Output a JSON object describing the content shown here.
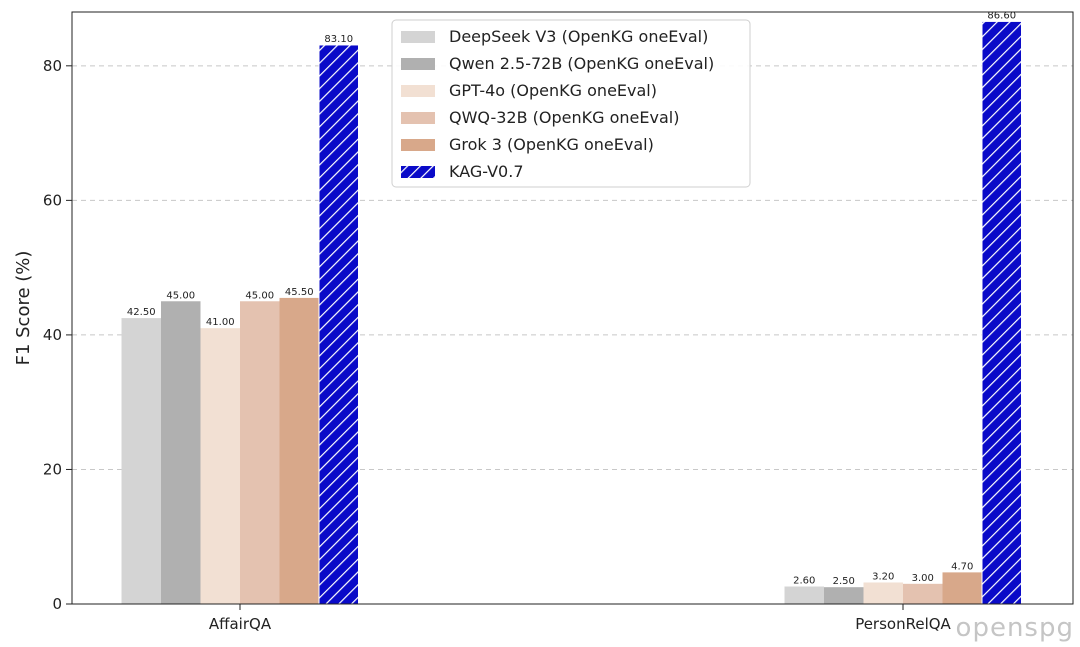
{
  "chart_data": {
    "type": "bar",
    "title": "",
    "xlabel": "",
    "ylabel": "F1 Score (%)",
    "ylim": [
      0,
      88
    ],
    "yticks": [
      0,
      20,
      40,
      60,
      80
    ],
    "grid": "y-dashed",
    "legend_position": "top-center",
    "categories": [
      "AffairQA",
      "PersonRelQA"
    ],
    "series": [
      {
        "name": "DeepSeek V3 (OpenKG oneEval)",
        "values": [
          42.5,
          2.6
        ],
        "labels": [
          "42.50",
          "2.60"
        ],
        "color": "#d4d4d4",
        "hatch": false
      },
      {
        "name": "Qwen 2.5-72B (OpenKG oneEval)",
        "values": [
          45.0,
          2.5
        ],
        "labels": [
          "45.00",
          "2.50"
        ],
        "color": "#b0b0b0",
        "hatch": false
      },
      {
        "name": "GPT-4o (OpenKG oneEval)",
        "values": [
          41.0,
          3.2
        ],
        "labels": [
          "41.00",
          "3.20"
        ],
        "color": "#f2e0d3",
        "hatch": false
      },
      {
        "name": "QWQ-32B (OpenKG oneEval)",
        "values": [
          45.0,
          3.0
        ],
        "labels": [
          "45.00",
          "3.00"
        ],
        "color": "#e4c2b0",
        "hatch": false
      },
      {
        "name": "Grok 3 (OpenKG oneEval)",
        "values": [
          45.5,
          4.7
        ],
        "labels": [
          "45.50",
          "4.70"
        ],
        "color": "#d8a88a",
        "hatch": false
      },
      {
        "name": "KAG-V0.7",
        "values": [
          83.1,
          86.6
        ],
        "labels": [
          "83.10",
          "86.60"
        ],
        "color": "#0a0ac8",
        "hatch": true
      }
    ]
  },
  "watermark": "openspg"
}
